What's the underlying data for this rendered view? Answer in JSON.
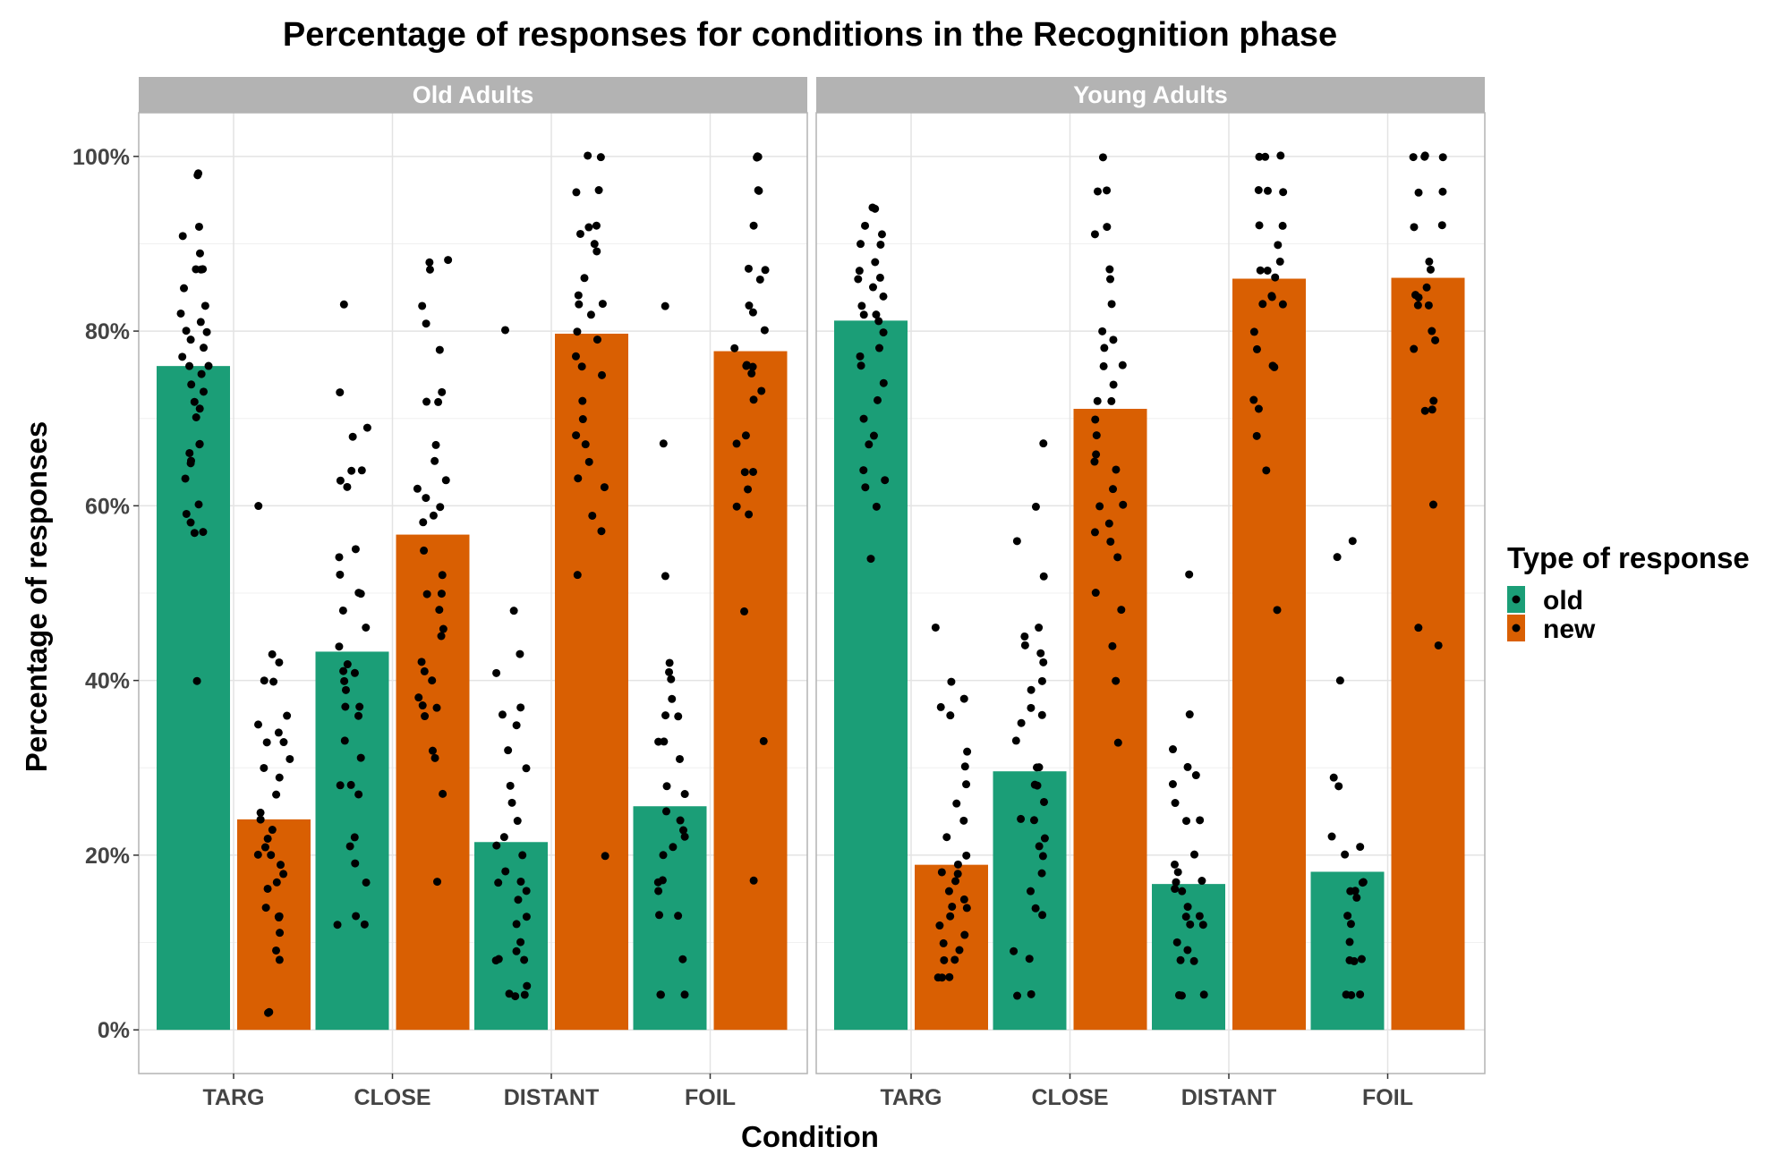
{
  "chart_data": {
    "type": "bar",
    "title": "Percentage of responses for conditions in the Recognition phase",
    "xlabel": "Condition",
    "ylabel": "Percentage of responses",
    "ylim": [
      -0.05,
      1.05
    ],
    "y_ticks": [
      0,
      0.2,
      0.4,
      0.6,
      0.8,
      1.0
    ],
    "y_tick_labels": [
      "0%",
      "20%",
      "40%",
      "60%",
      "80%",
      "100%"
    ],
    "grid": true,
    "legend": {
      "title": "Type of response",
      "position": "right",
      "entries": [
        {
          "label": "old",
          "color": "#1B9E77"
        },
        {
          "label": "new",
          "color": "#D95F02"
        }
      ]
    },
    "categories": [
      "TARG",
      "CLOSE",
      "DISTANT",
      "FOIL"
    ],
    "panels": [
      {
        "name": "Old Adults",
        "series": [
          {
            "name": "old",
            "color": "#1B9E77",
            "values": [
              0.76,
              0.433,
              0.215,
              0.256
            ]
          },
          {
            "name": "new",
            "color": "#D95F02",
            "values": [
              0.241,
              0.567,
              0.797,
              0.777
            ]
          }
        ],
        "points": [
          {
            "category": "TARG",
            "series": "old",
            "values": [
              0.98,
              0.98,
              0.92,
              0.91,
              0.89,
              0.87,
              0.87,
              0.87,
              0.85,
              0.83,
              0.82,
              0.81,
              0.8,
              0.8,
              0.79,
              0.78,
              0.77,
              0.76,
              0.76,
              0.75,
              0.74,
              0.73,
              0.72,
              0.71,
              0.7,
              0.67,
              0.67,
              0.66,
              0.65,
              0.65,
              0.63,
              0.6,
              0.59,
              0.58,
              0.57,
              0.57,
              0.4
            ]
          },
          {
            "category": "TARG",
            "series": "new",
            "values": [
              0.6,
              0.43,
              0.42,
              0.4,
              0.4,
              0.36,
              0.35,
              0.34,
              0.33,
              0.33,
              0.31,
              0.3,
              0.29,
              0.27,
              0.25,
              0.24,
              0.23,
              0.22,
              0.21,
              0.2,
              0.2,
              0.19,
              0.18,
              0.17,
              0.16,
              0.14,
              0.13,
              0.13,
              0.13,
              0.11,
              0.09,
              0.08,
              0.02,
              0.02
            ]
          },
          {
            "category": "CLOSE",
            "series": "old",
            "values": [
              0.83,
              0.73,
              0.69,
              0.68,
              0.64,
              0.64,
              0.63,
              0.62,
              0.55,
              0.54,
              0.52,
              0.5,
              0.5,
              0.48,
              0.46,
              0.44,
              0.42,
              0.41,
              0.41,
              0.4,
              0.39,
              0.37,
              0.37,
              0.36,
              0.33,
              0.31,
              0.28,
              0.28,
              0.27,
              0.22,
              0.21,
              0.19,
              0.17,
              0.13,
              0.12,
              0.12
            ]
          },
          {
            "category": "CLOSE",
            "series": "new",
            "values": [
              0.88,
              0.88,
              0.87,
              0.83,
              0.81,
              0.78,
              0.73,
              0.72,
              0.72,
              0.67,
              0.65,
              0.63,
              0.62,
              0.61,
              0.6,
              0.59,
              0.58,
              0.55,
              0.52,
              0.5,
              0.5,
              0.48,
              0.46,
              0.45,
              0.42,
              0.41,
              0.4,
              0.38,
              0.37,
              0.37,
              0.36,
              0.32,
              0.31,
              0.27,
              0.17
            ]
          },
          {
            "category": "DISTANT",
            "series": "old",
            "values": [
              0.8,
              0.48,
              0.43,
              0.41,
              0.37,
              0.36,
              0.35,
              0.32,
              0.3,
              0.28,
              0.26,
              0.24,
              0.22,
              0.21,
              0.2,
              0.18,
              0.17,
              0.17,
              0.16,
              0.15,
              0.13,
              0.12,
              0.1,
              0.09,
              0.08,
              0.08,
              0.08,
              0.05,
              0.04,
              0.04,
              0.04
            ]
          },
          {
            "category": "DISTANT",
            "series": "new",
            "values": [
              1.0,
              1.0,
              0.96,
              0.96,
              0.92,
              0.92,
              0.91,
              0.9,
              0.89,
              0.86,
              0.84,
              0.83,
              0.83,
              0.82,
              0.8,
              0.79,
              0.77,
              0.76,
              0.75,
              0.72,
              0.7,
              0.68,
              0.67,
              0.65,
              0.63,
              0.62,
              0.59,
              0.57,
              0.52,
              0.2
            ]
          },
          {
            "category": "FOIL",
            "series": "old",
            "values": [
              0.83,
              0.67,
              0.52,
              0.42,
              0.41,
              0.4,
              0.38,
              0.36,
              0.36,
              0.33,
              0.33,
              0.31,
              0.28,
              0.27,
              0.25,
              0.24,
              0.23,
              0.22,
              0.21,
              0.2,
              0.17,
              0.17,
              0.16,
              0.13,
              0.13,
              0.08,
              0.04,
              0.04,
              0.04
            ]
          },
          {
            "category": "FOIL",
            "series": "new",
            "values": [
              1.0,
              1.0,
              1.0,
              0.96,
              0.96,
              0.92,
              0.87,
              0.87,
              0.86,
              0.83,
              0.82,
              0.8,
              0.78,
              0.76,
              0.76,
              0.76,
              0.75,
              0.73,
              0.72,
              0.68,
              0.67,
              0.64,
              0.64,
              0.62,
              0.6,
              0.59,
              0.48,
              0.33,
              0.17
            ]
          }
        ]
      },
      {
        "name": "Young Adults",
        "series": [
          {
            "name": "old",
            "color": "#1B9E77",
            "values": [
              0.812,
              0.296,
              0.167,
              0.181
            ]
          },
          {
            "name": "new",
            "color": "#D95F02",
            "values": [
              0.189,
              0.711,
              0.86,
              0.861
            ]
          }
        ],
        "points": [
          {
            "category": "TARG",
            "series": "old",
            "values": [
              0.94,
              0.94,
              0.92,
              0.91,
              0.9,
              0.9,
              0.88,
              0.87,
              0.86,
              0.86,
              0.85,
              0.84,
              0.83,
              0.82,
              0.82,
              0.81,
              0.8,
              0.78,
              0.77,
              0.76,
              0.74,
              0.72,
              0.7,
              0.68,
              0.67,
              0.64,
              0.63,
              0.62,
              0.6,
              0.54
            ]
          },
          {
            "category": "TARG",
            "series": "new",
            "values": [
              0.46,
              0.4,
              0.38,
              0.37,
              0.36,
              0.32,
              0.3,
              0.28,
              0.26,
              0.24,
              0.22,
              0.2,
              0.19,
              0.18,
              0.18,
              0.17,
              0.16,
              0.15,
              0.14,
              0.14,
              0.13,
              0.12,
              0.11,
              0.1,
              0.09,
              0.08,
              0.08,
              0.06,
              0.06,
              0.06
            ]
          },
          {
            "category": "CLOSE",
            "series": "old",
            "values": [
              0.67,
              0.6,
              0.56,
              0.52,
              0.46,
              0.45,
              0.44,
              0.43,
              0.42,
              0.4,
              0.39,
              0.37,
              0.36,
              0.35,
              0.33,
              0.3,
              0.3,
              0.28,
              0.28,
              0.26,
              0.24,
              0.24,
              0.22,
              0.21,
              0.2,
              0.18,
              0.16,
              0.14,
              0.13,
              0.09,
              0.08,
              0.04,
              0.04
            ]
          },
          {
            "category": "CLOSE",
            "series": "new",
            "values": [
              1.0,
              0.96,
              0.96,
              0.92,
              0.91,
              0.87,
              0.86,
              0.83,
              0.8,
              0.79,
              0.78,
              0.76,
              0.76,
              0.74,
              0.72,
              0.72,
              0.7,
              0.68,
              0.66,
              0.65,
              0.64,
              0.62,
              0.6,
              0.6,
              0.58,
              0.57,
              0.56,
              0.54,
              0.5,
              0.48,
              0.44,
              0.4,
              0.33
            ]
          },
          {
            "category": "DISTANT",
            "series": "old",
            "values": [
              0.52,
              0.36,
              0.32,
              0.3,
              0.29,
              0.28,
              0.26,
              0.24,
              0.24,
              0.2,
              0.19,
              0.18,
              0.17,
              0.17,
              0.16,
              0.16,
              0.14,
              0.13,
              0.13,
              0.12,
              0.12,
              0.1,
              0.09,
              0.08,
              0.08,
              0.04,
              0.04,
              0.04
            ]
          },
          {
            "category": "DISTANT",
            "series": "new",
            "values": [
              1.0,
              1.0,
              1.0,
              0.96,
              0.96,
              0.96,
              0.92,
              0.92,
              0.9,
              0.88,
              0.87,
              0.87,
              0.86,
              0.84,
              0.84,
              0.83,
              0.83,
              0.8,
              0.78,
              0.76,
              0.76,
              0.72,
              0.71,
              0.68,
              0.64,
              0.48
            ]
          },
          {
            "category": "FOIL",
            "series": "old",
            "values": [
              0.56,
              0.54,
              0.4,
              0.29,
              0.28,
              0.22,
              0.21,
              0.2,
              0.17,
              0.17,
              0.16,
              0.16,
              0.15,
              0.13,
              0.12,
              0.1,
              0.08,
              0.08,
              0.08,
              0.04,
              0.04,
              0.04
            ]
          },
          {
            "category": "FOIL",
            "series": "new",
            "values": [
              1.0,
              1.0,
              1.0,
              1.0,
              0.96,
              0.96,
              0.92,
              0.92,
              0.88,
              0.87,
              0.85,
              0.84,
              0.84,
              0.83,
              0.83,
              0.8,
              0.79,
              0.78,
              0.72,
              0.71,
              0.71,
              0.6,
              0.46,
              0.44
            ]
          }
        ]
      }
    ]
  }
}
